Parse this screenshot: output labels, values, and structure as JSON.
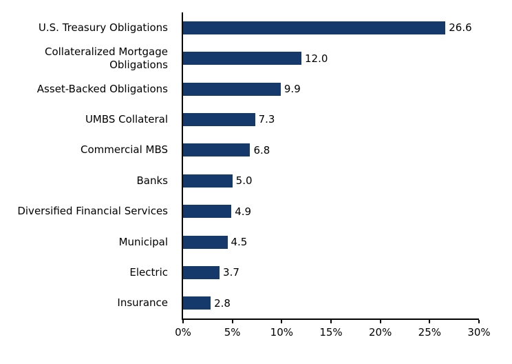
{
  "chart_data": {
    "type": "bar",
    "orientation": "horizontal",
    "title": "",
    "xlabel": "",
    "ylabel": "",
    "categories": [
      "U.S. Treasury Obligations",
      "Collateralized Mortgage Obligations",
      "Asset-Backed Obligations",
      "UMBS Collateral",
      "Commercial MBS",
      "Banks",
      "Diversified Financial Services",
      "Municipal",
      "Electric",
      "Insurance"
    ],
    "values": [
      26.6,
      12.0,
      9.9,
      7.3,
      6.8,
      5.0,
      4.9,
      4.5,
      3.7,
      2.8
    ],
    "value_labels": [
      "26.6",
      "12.0",
      "9.9",
      "7.3",
      "6.8",
      "5.0",
      "4.9",
      "4.5",
      "3.7",
      "2.8"
    ],
    "xlim": [
      0,
      30
    ],
    "x_ticks": [
      {
        "value": 0,
        "label": "0%"
      },
      {
        "value": 5,
        "label": "5%"
      },
      {
        "value": 10,
        "label": "10%"
      },
      {
        "value": 15,
        "label": "15%"
      },
      {
        "value": 20,
        "label": "20%"
      },
      {
        "value": 25,
        "label": "25%"
      },
      {
        "value": 30,
        "label": "30%"
      }
    ],
    "grid": false,
    "legend": false,
    "bar_color": "#16396b",
    "axis_color": "#000000",
    "text_color": "#000000"
  }
}
